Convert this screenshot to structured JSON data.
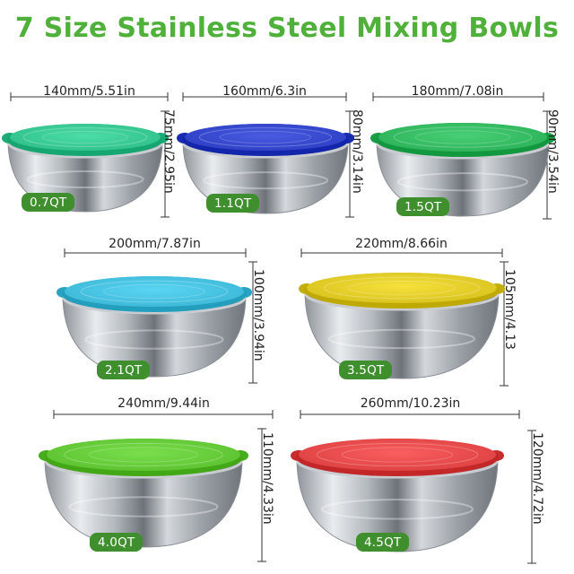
{
  "title": "7 Size Stainless Steel Mixing Bowls",
  "badge_color": "#3f8f2e",
  "bowls": [
    {
      "capacity": "0.7QT",
      "width": "140mm/5.51in",
      "height": "75mm/2.95in",
      "lid_color": "#2fbf8a"
    },
    {
      "capacity": "1.1QT",
      "width": "160mm/6.3in",
      "height": "80mm/3.14in",
      "lid_color": "#2c3fc4"
    },
    {
      "capacity": "1.5QT",
      "width": "180mm/7.08in",
      "height": "90mm/3.54in",
      "lid_color": "#2bb158"
    },
    {
      "capacity": "2.1QT",
      "width": "200mm/7.87in",
      "height": "100mm/3.94in",
      "lid_color": "#3cb7d6"
    },
    {
      "capacity": "3.5QT",
      "width": "220mm/8.66in",
      "height": "105mm/4.13",
      "lid_color": "#d8c21e"
    },
    {
      "capacity": "4.0QT",
      "width": "240mm/9.44in",
      "height": "110mm/4.33in",
      "lid_color": "#5cc12f"
    },
    {
      "capacity": "4.5QT",
      "width": "260mm/10.23in",
      "height": "120mm/4.72in",
      "lid_color": "#dc4040"
    }
  ]
}
